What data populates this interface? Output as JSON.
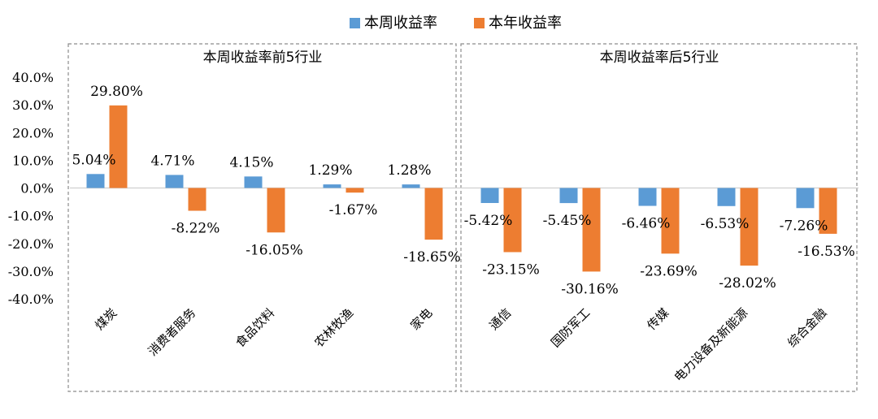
{
  "chart_data": {
    "type": "bar",
    "ylim": [
      -40,
      40
    ],
    "y_ticks": [
      "40.0%",
      "30.0%",
      "20.0%",
      "10.0%",
      "0.0%",
      "-10.0%",
      "-20.0%",
      "-30.0%",
      "-40.0%"
    ],
    "legend": {
      "placement": "top-center",
      "items": [
        {
          "name": "本周收益率",
          "color": "#5B9BD5"
        },
        {
          "name": "本年收益率",
          "color": "#ED7D31"
        }
      ]
    },
    "series": [
      {
        "name": "本周收益率",
        "color": "#5B9BD5",
        "values": [
          5.04,
          4.71,
          4.15,
          1.29,
          1.28,
          -5.42,
          -5.45,
          -6.46,
          -6.53,
          -7.26
        ]
      },
      {
        "name": "本年收益率",
        "color": "#ED7D31",
        "values": [
          29.8,
          -8.22,
          -16.05,
          -1.67,
          -18.65,
          -23.15,
          -30.16,
          -23.69,
          -28.02,
          -16.53
        ]
      }
    ],
    "categories": [
      "煤炭",
      "消费者服务",
      "食品饮料",
      "农林牧渔",
      "家电",
      "通信",
      "国防军工",
      "传媒",
      "电力设备及新能源",
      "综合金融"
    ],
    "data_labels": {
      "week": [
        "5.04%",
        "4.71%",
        "4.15%",
        "1.29%",
        "1.28%",
        "-5.42%",
        "-5.45%",
        "-6.46%",
        "-6.53%",
        "-7.26%"
      ],
      "year": [
        "29.80%",
        "-8.22%",
        "-16.05%",
        "-1.67%",
        "-18.65%",
        "-23.15%",
        "-30.16%",
        "-23.69%",
        "-28.02%",
        "-16.53%"
      ]
    },
    "panels": [
      {
        "title": "本周收益率前5行业",
        "range": [
          0,
          5
        ]
      },
      {
        "title": "本周收益率后5行业",
        "range": [
          5,
          10
        ]
      }
    ],
    "grid": false
  }
}
